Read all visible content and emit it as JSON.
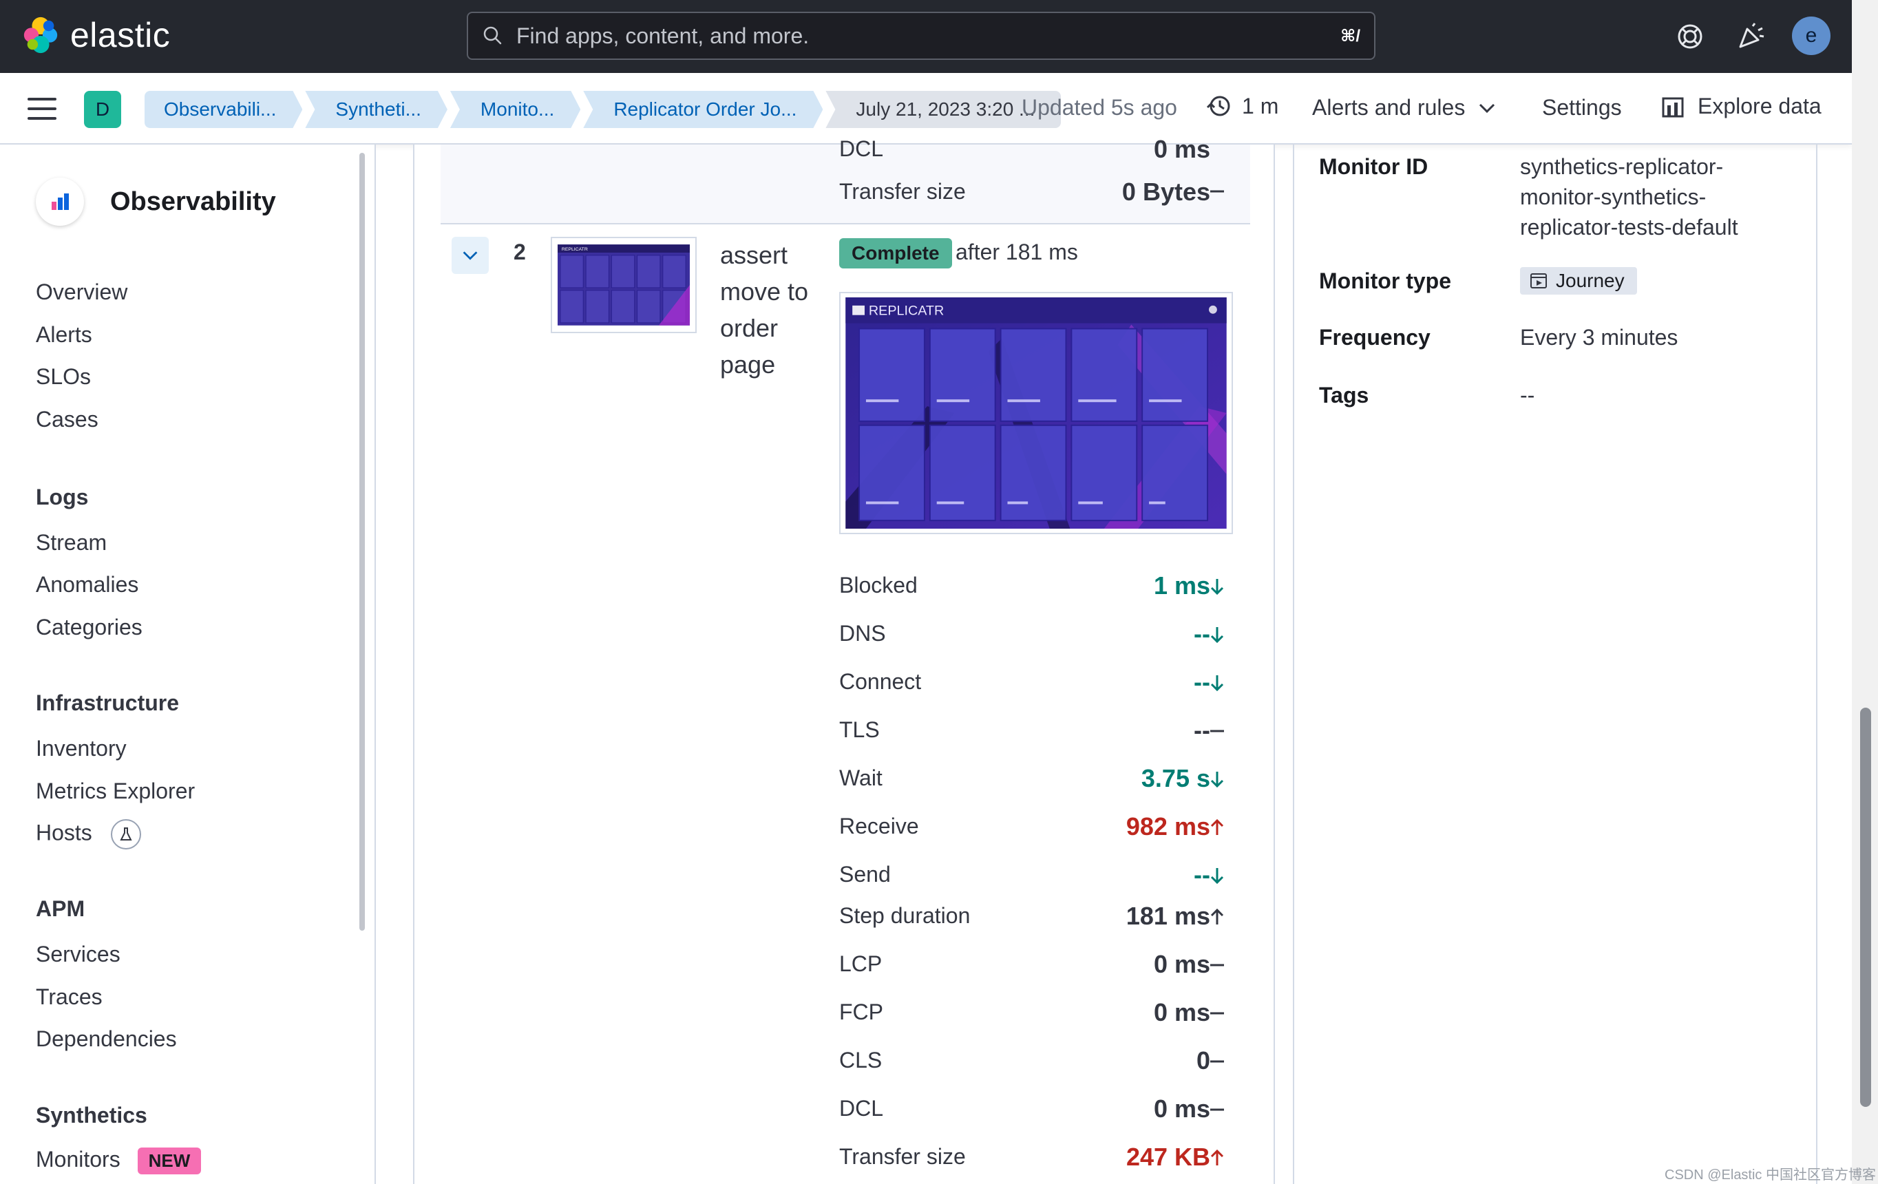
{
  "header": {
    "brand": "elastic",
    "search_placeholder": "Find apps, content, and more.",
    "search_shortcut": "⌘/",
    "icons": [
      "help-icon",
      "news-icon",
      "user-avatar"
    ],
    "avatar_initial": "e"
  },
  "subheader": {
    "space_initial": "D",
    "breadcrumbs": [
      "Observabili...",
      "Syntheti...",
      "Monito...",
      "Replicator Order Jo...",
      "July 21, 2023 3:20 ..."
    ],
    "updated": "Updated 5s ago",
    "refresh_interval": "1 m",
    "alerts_rules": "Alerts and rules",
    "settings": "Settings",
    "explore": "Explore data"
  },
  "sidenav": {
    "title": "Observability",
    "top_items": [
      "Overview",
      "Alerts",
      "SLOs",
      "Cases"
    ],
    "logs": {
      "heading": "Logs",
      "items": [
        "Stream",
        "Anomalies",
        "Categories"
      ]
    },
    "infrastructure": {
      "heading": "Infrastructure",
      "items": [
        "Inventory",
        "Metrics Explorer",
        "Hosts"
      ]
    },
    "apm": {
      "heading": "APM",
      "items": [
        "Services",
        "Traces",
        "Dependencies"
      ]
    },
    "synthetics": {
      "heading": "Synthetics",
      "items": [
        "Monitors"
      ],
      "badge": "NEW"
    }
  },
  "previous_step": {
    "rows": [
      {
        "label": "DCL",
        "value": "0 ms"
      },
      {
        "label": "Transfer size",
        "value": "0 Bytes"
      }
    ]
  },
  "step": {
    "number": "2",
    "name": "assert move to order page",
    "status": "Complete",
    "after": "after 181 ms",
    "thumbnail_brand": "REPLICATR",
    "screenshot_brand": "REPLICATR",
    "metrics": [
      {
        "label": "Blocked",
        "value": "1 ms",
        "trend": "down",
        "color": "green"
      },
      {
        "label": "DNS",
        "value": "--",
        "trend": "down",
        "color": "green"
      },
      {
        "label": "Connect",
        "value": "--",
        "trend": "down",
        "color": "green"
      },
      {
        "label": "TLS",
        "value": "--",
        "trend": "none",
        "color": "dark"
      },
      {
        "label": "Wait",
        "value": "3.75 s",
        "trend": "down",
        "color": "green"
      },
      {
        "label": "Receive",
        "value": "982 ms",
        "trend": "up",
        "color": "red"
      },
      {
        "label": "Send",
        "value": "--",
        "trend": "down",
        "color": "green"
      },
      {
        "label": "Step duration",
        "value": "181 ms",
        "trend": "up",
        "color": "dark"
      },
      {
        "label": "LCP",
        "value": "0 ms",
        "trend": "none",
        "color": "dark"
      },
      {
        "label": "FCP",
        "value": "0 ms",
        "trend": "none",
        "color": "dark"
      },
      {
        "label": "CLS",
        "value": "0",
        "trend": "none",
        "color": "dark"
      },
      {
        "label": "DCL",
        "value": "0 ms",
        "trend": "none",
        "color": "dark"
      },
      {
        "label": "Transfer size",
        "value": "247 KB",
        "trend": "up",
        "color": "red"
      }
    ]
  },
  "monitor_info": {
    "monitor_id_label": "Monitor ID",
    "monitor_id_lines": [
      "synthetics-replicator-",
      "monitor-synthetics-",
      "replicator-tests-default"
    ],
    "monitor_type_label": "Monitor type",
    "monitor_type": "Journey",
    "frequency_label": "Frequency",
    "frequency": "Every 3 minutes",
    "tags_label": "Tags",
    "tags": "--"
  },
  "watermark": "CSDN @Elastic 中国社区官方博客",
  "colors": {
    "green": "#017d73",
    "red": "#bd271e",
    "dark": "#343741",
    "accent": "#0061b5"
  }
}
